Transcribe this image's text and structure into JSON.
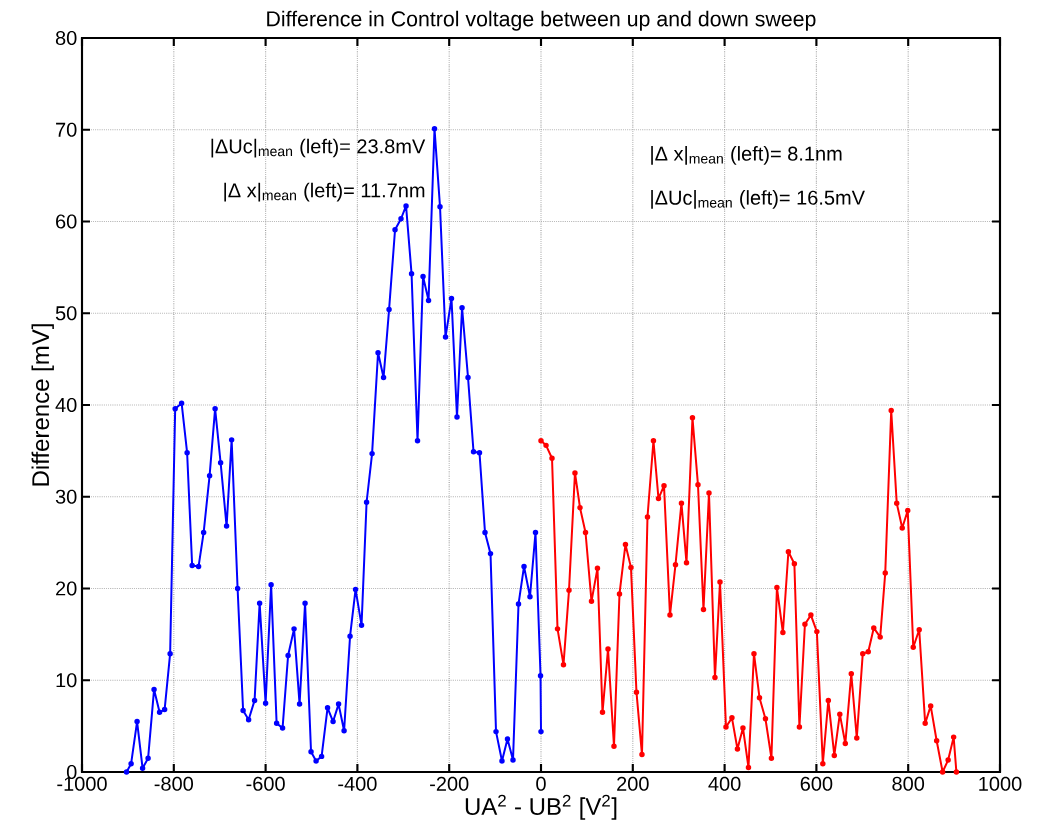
{
  "chart_data": {
    "type": "line",
    "title": "Difference in Control voltage between up and down sweep",
    "xlabel": "UA$^{2}$ - UB$^{2}$ [V$^{2}$]",
    "ylabel": "Difference [mV]",
    "xlim": [
      -1000,
      1000
    ],
    "ylim": [
      0,
      80
    ],
    "xticks": [
      -1000,
      -800,
      -600,
      -400,
      -200,
      0,
      200,
      400,
      600,
      800,
      1000
    ],
    "yticks": [
      0,
      10,
      20,
      30,
      40,
      50,
      60,
      70,
      80
    ],
    "grid": true,
    "marker": "circle",
    "line_style": "solid",
    "annotations": [
      "|ΔUc|$_{mean}$ (left)= 23.8mV",
      "|Δ x|$_{mean}$ (left)= 11.7nm",
      "|Δ x|$_{mean}$ (left)= 8.1nm",
      "|ΔUc|$_{mean}$ (left)= 16.5mV"
    ],
    "series": [
      {
        "color": "#0000ff",
        "x": [
          -903,
          -893,
          -880,
          -868,
          -856,
          -843,
          -831,
          -820,
          -808,
          -797,
          -783,
          -771,
          -760,
          -746,
          -735,
          -722,
          -710,
          -698,
          -685,
          -674,
          -661,
          -649,
          -637,
          -624,
          -613,
          -600,
          -588,
          -576,
          -563,
          -551,
          -538,
          -526,
          -514,
          -501,
          -490,
          -478,
          -465,
          -453,
          -441,
          -429,
          -416,
          -404,
          -391,
          -380,
          -368,
          -355,
          -343,
          -331,
          -318,
          -305,
          -294,
          -282,
          -269,
          -257,
          -245,
          -232,
          -220,
          -208,
          -195,
          -183,
          -172,
          -159,
          -147,
          -134,
          -122,
          -110,
          -98,
          -85,
          -73,
          -61,
          -49,
          -37,
          -24,
          -12,
          -1,
          0
        ],
        "values": [
          0,
          0.9,
          5.5,
          0.4,
          1.5,
          9.0,
          6.5,
          6.8,
          12.9,
          39.6,
          40.2,
          34.8,
          22.5,
          22.4,
          26.1,
          32.3,
          39.6,
          33.7,
          26.8,
          36.2,
          20.0,
          6.7,
          5.7,
          7.8,
          18.4,
          7.5,
          20.4,
          5.3,
          4.8,
          12.7,
          15.6,
          7.4,
          18.4,
          2.2,
          1.2,
          1.7,
          7.0,
          5.5,
          7.4,
          4.5,
          14.8,
          19.9,
          16.0,
          29.4,
          34.7,
          45.7,
          43.0,
          50.4,
          59.1,
          60.3,
          61.7,
          54.3,
          36.1,
          54.0,
          51.4,
          70.1,
          61.6,
          47.4,
          51.6,
          38.7,
          50.6,
          43.0,
          34.9,
          34.8,
          26.1,
          23.8,
          4.4,
          1.2,
          3.6,
          1.3,
          18.3,
          22.4,
          19.1,
          26.1,
          10.5,
          4.4
        ]
      },
      {
        "color": "#ff0000",
        "x": [
          0,
          11,
          24,
          36,
          49,
          61,
          74,
          85,
          97,
          110,
          123,
          134,
          146,
          159,
          171,
          184,
          196,
          208,
          220,
          232,
          245,
          256,
          268,
          281,
          293,
          306,
          317,
          330,
          342,
          354,
          366,
          379,
          390,
          403,
          416,
          428,
          440,
          452,
          464,
          476,
          489,
          502,
          514,
          527,
          539,
          552,
          563,
          575,
          588,
          601,
          614,
          626,
          639,
          651,
          663,
          676,
          688,
          701,
          713,
          725,
          739,
          750,
          763,
          775,
          787,
          799,
          811,
          824,
          837,
          849,
          862,
          875,
          887,
          899,
          905
        ],
        "values": [
          36.1,
          35.6,
          34.2,
          15.6,
          11.7,
          19.8,
          32.6,
          28.8,
          26.1,
          18.6,
          22.2,
          6.5,
          13.4,
          2.8,
          19.4,
          24.8,
          22.3,
          8.7,
          1.9,
          27.8,
          36.1,
          29.8,
          31.2,
          17.1,
          22.6,
          29.3,
          22.8,
          38.6,
          31.3,
          17.7,
          30.4,
          10.3,
          20.7,
          4.9,
          5.9,
          2.5,
          4.8,
          0.5,
          12.9,
          8.1,
          5.8,
          1.5,
          20.1,
          15.2,
          24.0,
          22.7,
          4.9,
          16.1,
          17.1,
          15.3,
          0.9,
          7.8,
          1.8,
          6.3,
          3.1,
          10.7,
          3.7,
          12.9,
          13.1,
          15.7,
          14.7,
          21.7,
          39.4,
          29.3,
          26.6,
          28.5,
          13.6,
          15.5,
          5.3,
          7.2,
          3.4,
          0,
          1.3,
          3.8,
          0
        ]
      }
    ]
  }
}
